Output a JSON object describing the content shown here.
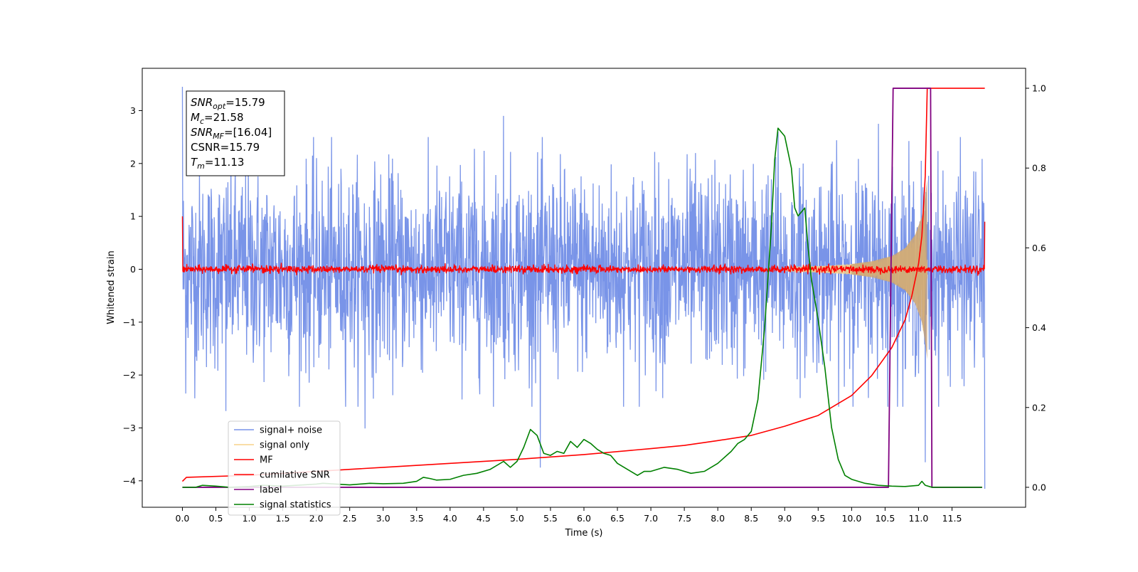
{
  "chart_data": {
    "type": "line",
    "xlabel": "Time (s)",
    "ylabel": "Whitened strain",
    "xlim": [
      -0.6,
      12.6
    ],
    "ylim": [
      -4.5,
      3.8
    ],
    "y2lim": [
      -0.05,
      1.05
    ],
    "x_ticks": [
      0.0,
      0.5,
      1.0,
      1.5,
      2.0,
      2.5,
      3.0,
      3.5,
      4.0,
      4.5,
      5.0,
      5.5,
      6.0,
      6.5,
      7.0,
      7.5,
      8.0,
      8.5,
      9.0,
      9.5,
      10.0,
      10.5,
      11.0,
      11.5
    ],
    "x_tick_labels": [
      "0.0",
      "0.5",
      "1.0",
      "1.5",
      "2.0",
      "2.5",
      "3.0",
      "3.5",
      "4.0",
      "4.5",
      "5.0",
      "5.5",
      "6.0",
      "6.5",
      "7.0",
      "7.5",
      "8.0",
      "8.5",
      "9.0",
      "9.5",
      "10.0",
      "10.5",
      "11.0",
      "11.5"
    ],
    "y_ticks": [
      3,
      2,
      1,
      0,
      -1,
      -2,
      -3,
      -4
    ],
    "y_tick_labels": [
      "3",
      "2",
      "1",
      "0",
      "−1",
      "−2",
      "−3",
      "−4"
    ],
    "y2_ticks": [
      1.0,
      0.8,
      0.6,
      0.4,
      0.2,
      0.0
    ],
    "y2_tick_labels": [
      "1.0",
      "0.8",
      "0.6",
      "0.4",
      "0.2",
      "0.0"
    ],
    "grid": false,
    "legend_position": "lower-left",
    "annotation": [
      {
        "base": "SNR",
        "sub": "opt",
        "value": "=15.79"
      },
      {
        "base": "M",
        "sub": "c",
        "value": "=21.58"
      },
      {
        "base": "SNR",
        "sub": "MF",
        "value": "=[16.04]"
      },
      {
        "base": "CSNR",
        "sub": "",
        "value": "=15.79"
      },
      {
        "base": "T",
        "sub": "m",
        "value": "=11.13"
      }
    ],
    "series": [
      {
        "name": "signal+ noise",
        "color": "#7994e8",
        "axis": "left",
        "kind": "noise",
        "x_range": [
          0.0,
          11.99
        ],
        "typical_amplitude": 1.5,
        "peaks": [
          {
            "x": 0.0,
            "y": 3.45
          },
          {
            "x": 0.05,
            "y": -2.35
          },
          {
            "x": 0.65,
            "y": -2.68
          },
          {
            "x": 2.73,
            "y": -3.01
          },
          {
            "x": 4.8,
            "y": 2.9
          },
          {
            "x": 5.35,
            "y": -3.75
          },
          {
            "x": 8.9,
            "y": 2.6
          },
          {
            "x": 10.4,
            "y": 2.75
          },
          {
            "x": 11.1,
            "y": 2.75
          },
          {
            "x": 11.1,
            "y": -3.65
          },
          {
            "x": 11.99,
            "y": -4.15
          }
        ]
      },
      {
        "name": "signal only",
        "color": "#f7d28a",
        "axis": "left",
        "kind": "chirp",
        "x_range": [
          9.0,
          11.13
        ],
        "envelope_x": [
          9.0,
          9.5,
          10.0,
          10.3,
          10.6,
          10.8,
          10.95,
          11.05,
          11.1,
          11.13
        ],
        "envelope_y": [
          0.04,
          0.06,
          0.1,
          0.15,
          0.25,
          0.4,
          0.65,
          1.0,
          1.4,
          1.7
        ]
      },
      {
        "name": "MF",
        "color": "#ff0000",
        "axis": "left",
        "kind": "band",
        "x_range": [
          0.0,
          11.99
        ],
        "typical_amplitude": 0.08,
        "start_y": 1.0,
        "end_y": 0.9
      },
      {
        "name": "cumilative SNR",
        "color": "#ff0000",
        "axis": "right",
        "x": [
          0.0,
          0.06,
          1.0,
          2.0,
          3.0,
          4.0,
          5.0,
          6.0,
          7.0,
          7.5,
          8.0,
          8.5,
          9.0,
          9.5,
          10.0,
          10.3,
          10.6,
          10.8,
          10.9,
          11.0,
          11.05,
          11.1,
          11.13,
          11.5,
          11.99
        ],
        "y": [
          0.015,
          0.025,
          0.03,
          0.04,
          0.05,
          0.06,
          0.07,
          0.082,
          0.097,
          0.105,
          0.117,
          0.13,
          0.153,
          0.18,
          0.23,
          0.28,
          0.35,
          0.42,
          0.48,
          0.56,
          0.63,
          0.78,
          1.0,
          1.0,
          1.0
        ]
      },
      {
        "name": "label",
        "color": "#800080",
        "axis": "right",
        "x": [
          0.0,
          10.55,
          10.62,
          11.18,
          11.2,
          11.95
        ],
        "y": [
          0.0,
          0.0,
          1.0,
          1.0,
          0.0,
          0.0
        ]
      },
      {
        "name": "signal statistics",
        "color": "#008000",
        "axis": "right",
        "x": [
          0.0,
          0.2,
          0.3,
          0.5,
          0.7,
          1.0,
          1.2,
          1.5,
          2.0,
          2.1,
          2.3,
          2.5,
          2.8,
          3.0,
          3.3,
          3.5,
          3.6,
          3.7,
          3.8,
          4.0,
          4.2,
          4.4,
          4.6,
          4.8,
          4.9,
          5.0,
          5.1,
          5.2,
          5.3,
          5.4,
          5.5,
          5.6,
          5.7,
          5.8,
          5.9,
          6.0,
          6.1,
          6.2,
          6.3,
          6.4,
          6.5,
          6.6,
          6.7,
          6.8,
          6.9,
          7.0,
          7.2,
          7.4,
          7.6,
          7.8,
          8.0,
          8.2,
          8.3,
          8.4,
          8.5,
          8.6,
          8.7,
          8.8,
          8.85,
          8.9,
          9.0,
          9.1,
          9.15,
          9.2,
          9.3,
          9.35,
          9.4,
          9.5,
          9.6,
          9.7,
          9.8,
          9.9,
          10.0,
          10.2,
          10.4,
          10.6,
          10.8,
          11.0,
          11.05,
          11.1,
          11.2,
          11.5,
          11.95
        ],
        "y": [
          0.0,
          0.0,
          0.005,
          0.003,
          0.0,
          0.002,
          0.005,
          0.003,
          0.008,
          0.01,
          0.008,
          0.006,
          0.01,
          0.009,
          0.01,
          0.015,
          0.025,
          0.022,
          0.018,
          0.02,
          0.03,
          0.035,
          0.045,
          0.065,
          0.05,
          0.065,
          0.1,
          0.145,
          0.13,
          0.085,
          0.08,
          0.09,
          0.085,
          0.115,
          0.1,
          0.12,
          0.11,
          0.095,
          0.085,
          0.08,
          0.06,
          0.05,
          0.04,
          0.03,
          0.04,
          0.04,
          0.05,
          0.045,
          0.035,
          0.04,
          0.06,
          0.09,
          0.11,
          0.12,
          0.14,
          0.22,
          0.4,
          0.65,
          0.82,
          0.9,
          0.88,
          0.8,
          0.7,
          0.68,
          0.7,
          0.6,
          0.52,
          0.42,
          0.3,
          0.15,
          0.07,
          0.03,
          0.02,
          0.01,
          0.005,
          0.003,
          0.002,
          0.005,
          0.015,
          0.005,
          0.0,
          0.0,
          0.0
        ]
      }
    ]
  }
}
